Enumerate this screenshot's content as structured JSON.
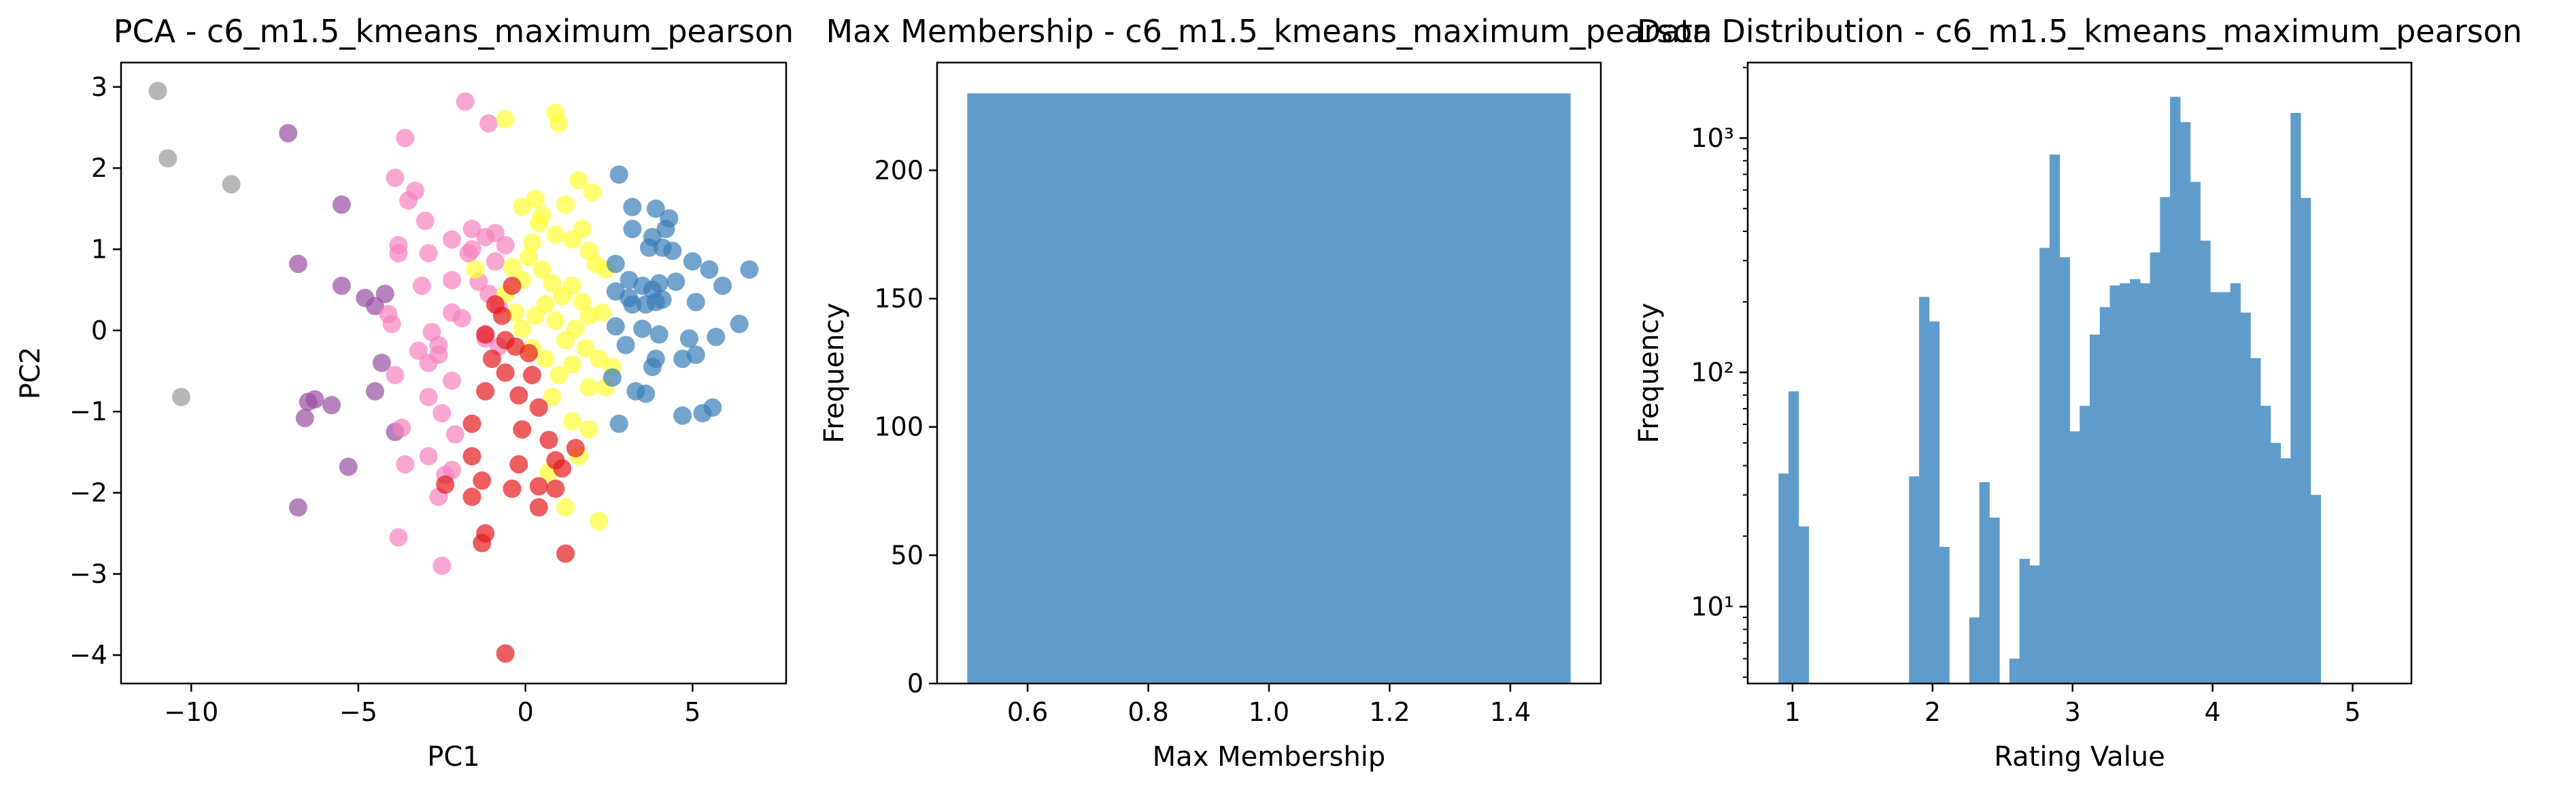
{
  "chart_data": [
    {
      "type": "scatter",
      "title": "PCA - c6_m1.5_kmeans_maximum_pearson",
      "xlabel": "PC1",
      "ylabel": "PC2",
      "xlim": [
        -12.1,
        7.8
      ],
      "ylim": [
        -4.35,
        3.3
      ],
      "xticks": [
        "−10",
        "−5",
        "0",
        "5"
      ],
      "yticks": [
        "−4",
        "−3",
        "−2",
        "−1",
        "0",
        "1",
        "2",
        "3"
      ],
      "xtick_values": [
        -10,
        -5,
        0,
        5
      ],
      "ytick_values": [
        -4,
        -3,
        -2,
        -1,
        0,
        1,
        2,
        3
      ],
      "series": [
        {
          "color": "#999999",
          "points": [
            [
              -11,
              2.95
            ],
            [
              -10.7,
              2.12
            ],
            [
              -8.8,
              1.8
            ],
            [
              -10.3,
              -0.82
            ]
          ]
        },
        {
          "color": "#984ea3",
          "points": [
            [
              -7.1,
              2.43
            ],
            [
              -6.8,
              0.82
            ],
            [
              -5.5,
              1.55
            ],
            [
              -5.5,
              0.55
            ],
            [
              -4.8,
              0.4
            ],
            [
              -4.5,
              0.3
            ],
            [
              -4.2,
              0.45
            ],
            [
              -4.3,
              -0.4
            ],
            [
              -4.5,
              -0.75
            ],
            [
              -3.9,
              -1.25
            ],
            [
              -5.8,
              -0.92
            ],
            [
              -6.5,
              -0.88
            ],
            [
              -6.3,
              -0.85
            ],
            [
              -6.6,
              -1.08
            ],
            [
              -5.3,
              -1.68
            ],
            [
              -6.8,
              -2.18
            ]
          ]
        },
        {
          "color": "#f781bf",
          "points": [
            [
              -1.8,
              2.82
            ],
            [
              -1.1,
              2.55
            ],
            [
              -3.6,
              2.37
            ],
            [
              -3.9,
              1.88
            ],
            [
              -3.5,
              1.6
            ],
            [
              -3.3,
              1.72
            ],
            [
              -3,
              1.35
            ],
            [
              -3.8,
              0.95
            ],
            [
              -3.8,
              1.05
            ],
            [
              -2.2,
              1.12
            ],
            [
              -1.6,
              1
            ],
            [
              -1.7,
              0.95
            ],
            [
              -1.6,
              1.25
            ],
            [
              -1.2,
              1.15
            ],
            [
              -0.9,
              1.2
            ],
            [
              -0.6,
              1.05
            ],
            [
              -0.9,
              0.85
            ],
            [
              -2.9,
              0.95
            ],
            [
              -2.2,
              0.62
            ],
            [
              -1.4,
              0.6
            ],
            [
              -1.1,
              0.45
            ],
            [
              -0.8,
              0.3
            ],
            [
              -3.1,
              0.55
            ],
            [
              -4.1,
              0.2
            ],
            [
              -4,
              0.08
            ],
            [
              -2.2,
              0.22
            ],
            [
              -1.9,
              0.15
            ],
            [
              -1.2,
              -0.05
            ],
            [
              -2.8,
              -0.02
            ],
            [
              -2.6,
              -0.18
            ],
            [
              -3.2,
              -0.25
            ],
            [
              -2.6,
              -0.3
            ],
            [
              -2.9,
              -0.4
            ],
            [
              -3.9,
              -0.55
            ],
            [
              -2.2,
              -0.62
            ],
            [
              -2.9,
              -0.82
            ],
            [
              -2.5,
              -1.02
            ],
            [
              -3.7,
              -1.2
            ],
            [
              -2.1,
              -1.28
            ],
            [
              -2.9,
              -1.55
            ],
            [
              -3.6,
              -1.65
            ],
            [
              -2.2,
              -1.72
            ],
            [
              -2.4,
              -1.78
            ],
            [
              -2.6,
              -2.05
            ],
            [
              -3.8,
              -2.55
            ],
            [
              -2.5,
              -2.9
            ],
            [
              -1.2,
              -0.1
            ],
            [
              -0.8,
              -0.2
            ]
          ]
        },
        {
          "color": "#ffff33",
          "points": [
            [
              -0.6,
              2.6
            ],
            [
              0.9,
              2.68
            ],
            [
              1,
              2.55
            ],
            [
              -0.1,
              1.52
            ],
            [
              0.3,
              1.62
            ],
            [
              0.5,
              1.42
            ],
            [
              1.2,
              1.55
            ],
            [
              1.6,
              1.85
            ],
            [
              2,
              1.7
            ],
            [
              0.4,
              1.32
            ],
            [
              0.2,
              1.08
            ],
            [
              0.9,
              1.18
            ],
            [
              1.4,
              1.12
            ],
            [
              1.7,
              1.25
            ],
            [
              1.9,
              0.98
            ],
            [
              2.1,
              0.82
            ],
            [
              2.4,
              0.75
            ],
            [
              0.1,
              0.9
            ],
            [
              -0.4,
              0.78
            ],
            [
              -0.1,
              0.62
            ],
            [
              0.5,
              0.75
            ],
            [
              0.8,
              0.58
            ],
            [
              1.1,
              0.42
            ],
            [
              1.4,
              0.55
            ],
            [
              1.7,
              0.35
            ],
            [
              1.9,
              0.18
            ],
            [
              2.3,
              0.22
            ],
            [
              0.6,
              0.32
            ],
            [
              0.3,
              0.18
            ],
            [
              -0.3,
              0.22
            ],
            [
              -0.1,
              0.02
            ],
            [
              0.9,
              0.12
            ],
            [
              1.2,
              -0.12
            ],
            [
              1.5,
              0.02
            ],
            [
              1.8,
              -0.22
            ],
            [
              2.2,
              -0.35
            ],
            [
              2.6,
              -0.45
            ],
            [
              0.2,
              -0.22
            ],
            [
              0.6,
              -0.35
            ],
            [
              1,
              -0.55
            ],
            [
              1.4,
              -0.42
            ],
            [
              1.9,
              -0.7
            ],
            [
              2.4,
              -0.7
            ],
            [
              0.8,
              -0.82
            ],
            [
              1.4,
              -1.12
            ],
            [
              1.9,
              -1.22
            ],
            [
              1.6,
              -1.55
            ],
            [
              0.7,
              -1.75
            ],
            [
              1.2,
              -2.18
            ],
            [
              2.2,
              -2.35
            ],
            [
              -1.5,
              0.75
            ],
            [
              -0.6,
              0.45
            ]
          ]
        },
        {
          "color": "#e41a1c",
          "points": [
            [
              -0.4,
              0.55
            ],
            [
              -0.9,
              0.32
            ],
            [
              -0.7,
              0.18
            ],
            [
              -1.2,
              -0.05
            ],
            [
              -0.6,
              -0.12
            ],
            [
              -0.3,
              -0.2
            ],
            [
              0.1,
              -0.28
            ],
            [
              -1,
              -0.35
            ],
            [
              -0.6,
              -0.52
            ],
            [
              0.2,
              -0.55
            ],
            [
              -1.2,
              -0.75
            ],
            [
              -0.2,
              -0.8
            ],
            [
              0.4,
              -0.95
            ],
            [
              -1.6,
              -1.15
            ],
            [
              -0.1,
              -1.22
            ],
            [
              0.7,
              -1.35
            ],
            [
              -1.6,
              -1.55
            ],
            [
              0.9,
              -1.6
            ],
            [
              1.5,
              -1.45
            ],
            [
              -0.2,
              -1.65
            ],
            [
              1.1,
              -1.7
            ],
            [
              -1.3,
              -1.85
            ],
            [
              -2.4,
              -1.9
            ],
            [
              -1.6,
              -2.05
            ],
            [
              -0.4,
              -1.95
            ],
            [
              0.4,
              -1.92
            ],
            [
              0.9,
              -1.95
            ],
            [
              0.4,
              -2.18
            ],
            [
              -1.2,
              -2.5
            ],
            [
              -1.3,
              -2.62
            ],
            [
              1.2,
              -2.75
            ],
            [
              -0.6,
              -3.98
            ]
          ]
        },
        {
          "color": "#377eb8",
          "points": [
            [
              2.8,
              1.92
            ],
            [
              3.2,
              1.52
            ],
            [
              3.9,
              1.5
            ],
            [
              4.3,
              1.38
            ],
            [
              3.2,
              1.25
            ],
            [
              3.8,
              1.15
            ],
            [
              4.2,
              1.25
            ],
            [
              3.7,
              1.02
            ],
            [
              4.1,
              1.02
            ],
            [
              4.4,
              0.98
            ],
            [
              5,
              0.85
            ],
            [
              5.5,
              0.75
            ],
            [
              6.7,
              0.75
            ],
            [
              2.7,
              0.82
            ],
            [
              3.1,
              0.62
            ],
            [
              3.5,
              0.55
            ],
            [
              4,
              0.58
            ],
            [
              4.5,
              0.6
            ],
            [
              5.9,
              0.55
            ],
            [
              2.7,
              0.48
            ],
            [
              3.1,
              0.4
            ],
            [
              3.8,
              0.5
            ],
            [
              3.2,
              0.32
            ],
            [
              3.6,
              0.32
            ],
            [
              3.9,
              0.35
            ],
            [
              4.1,
              0.38
            ],
            [
              5.1,
              0.35
            ],
            [
              6.4,
              0.08
            ],
            [
              2.7,
              0.05
            ],
            [
              3.5,
              0.02
            ],
            [
              4,
              -0.05
            ],
            [
              4.9,
              -0.1
            ],
            [
              5.7,
              -0.08
            ],
            [
              3,
              -0.18
            ],
            [
              3.9,
              -0.35
            ],
            [
              4.7,
              -0.35
            ],
            [
              5.1,
              -0.3
            ],
            [
              3.8,
              -0.45
            ],
            [
              2.6,
              -0.58
            ],
            [
              3.3,
              -0.75
            ],
            [
              3.6,
              -0.78
            ],
            [
              4.7,
              -1.05
            ],
            [
              5.3,
              -1.02
            ],
            [
              5.6,
              -0.95
            ],
            [
              2.8,
              -1.15
            ]
          ]
        }
      ]
    },
    {
      "type": "bar",
      "title": "Max Membership - c6_m1.5_kmeans_maximum_pearson",
      "xlabel": "Max Membership",
      "ylabel": "Frequency",
      "xlim": [
        0.45,
        1.55
      ],
      "ylim": [
        0,
        242
      ],
      "xticks": [
        "0.6",
        "0.8",
        "1.0",
        "1.2",
        "1.4"
      ],
      "yticks": [
        "0",
        "50",
        "100",
        "150",
        "200"
      ],
      "xtick_values": [
        0.6,
        0.8,
        1.0,
        1.2,
        1.4
      ],
      "ytick_values": [
        0,
        50,
        100,
        150,
        200
      ],
      "color": "#5f9ccc",
      "bins": [
        [
          0.5,
          1.5
        ]
      ],
      "values": [
        230
      ]
    },
    {
      "type": "bar",
      "title": "Data Distribution - c6_m1.5_kmeans_maximum_pearson",
      "xlabel": "Rating Value",
      "ylabel": "Frequency",
      "yscale": "log",
      "xlim": [
        0.68,
        5.42
      ],
      "ylim": [
        4.7,
        2100
      ],
      "xticks": [
        "1",
        "2",
        "3",
        "4",
        "5"
      ],
      "xtick_values": [
        1,
        2,
        3,
        4,
        5
      ],
      "yticks": [
        "10¹",
        "10²",
        "10³"
      ],
      "ytick_values": [
        10,
        100,
        1000
      ],
      "color": "#5f9ccc",
      "bin_start": 0.9,
      "bin_width": 0.0717,
      "values": [
        37,
        83,
        22,
        0,
        0,
        0,
        0,
        0,
        0,
        0,
        0,
        0,
        0,
        36,
        210,
        165,
        18,
        0,
        0,
        9,
        34,
        24,
        0,
        6,
        16,
        15,
        340,
        850,
        310,
        56,
        72,
        145,
        190,
        235,
        240,
        250,
        240,
        325,
        560,
        1500,
        1170,
        650,
        365,
        220,
        220,
        240,
        180,
        115,
        72,
        50,
        43,
        1280,
        555,
        30
      ]
    }
  ]
}
